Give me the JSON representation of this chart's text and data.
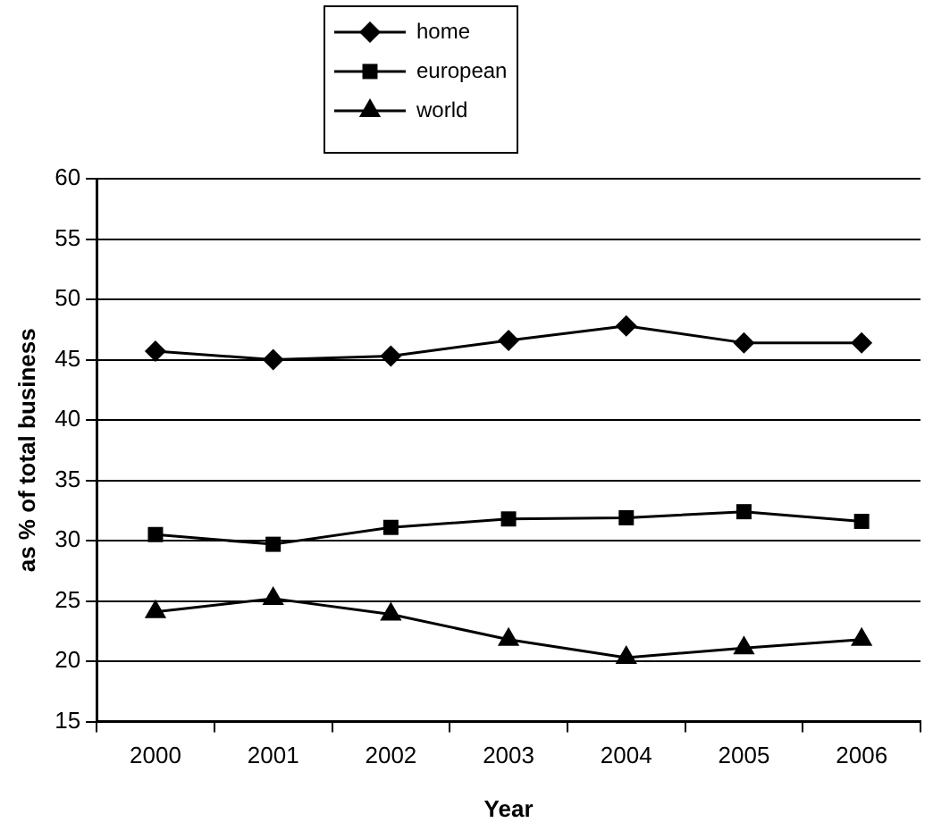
{
  "chart_data": {
    "type": "line",
    "xlabel": "Year",
    "ylabel": "as % of total business",
    "categories": [
      "2000",
      "2001",
      "2002",
      "2003",
      "2004",
      "2005",
      "2006"
    ],
    "series": [
      {
        "name": "home",
        "color": "#000000",
        "marker": "diamond",
        "values": [
          45.7,
          45.0,
          45.3,
          46.6,
          47.8,
          46.4,
          46.4
        ]
      },
      {
        "name": "european",
        "color": "#000000",
        "marker": "square",
        "values": [
          30.5,
          29.7,
          31.1,
          31.8,
          31.9,
          32.4,
          31.6
        ]
      },
      {
        "name": "world",
        "color": "#000000",
        "marker": "triangle",
        "values": [
          24.1,
          25.2,
          23.9,
          21.8,
          20.3,
          21.1,
          21.8
        ]
      }
    ],
    "ylim": [
      15,
      60
    ],
    "yticks": [
      15,
      20,
      25,
      30,
      35,
      40,
      45,
      50,
      55,
      60
    ],
    "grid": "y",
    "legend": "top",
    "line_style": "solid"
  }
}
